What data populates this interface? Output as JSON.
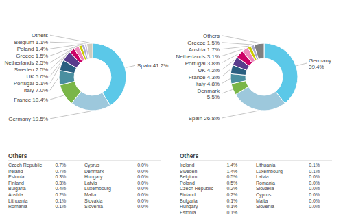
{
  "chart_data": [
    {
      "type": "donut",
      "categories": [
        "Spain 41.2%",
        "Germany 19.5%",
        "France 10.4%",
        "Italy 7.0%",
        "Portugal 5.1%",
        "UK 5.0%",
        "Sweden 2.5%",
        "Netherlands 2.5%",
        "Greece 1.5%",
        "Poland 1.4%",
        "Belgium 1.1%",
        "Others"
      ],
      "values": [
        41.2,
        19.5,
        10.4,
        7.0,
        5.1,
        5.0,
        2.5,
        2.5,
        1.5,
        1.4,
        1.1,
        2.8
      ],
      "colors": [
        "#5bc8e8",
        "#9dc8dc",
        "#7ab648",
        "#4a8fa0",
        "#2a5f80",
        "#5a3c8c",
        "#cc0066",
        "#ee88bb",
        "#cccc00",
        "#aaaacc",
        "#ccbbdd",
        "#d0ccc0"
      ],
      "others": {
        "title": "Others",
        "categories": [
          "Czech Republic",
          "Ireland",
          "Estonia",
          "Finland",
          "Bulgaria",
          "Austria",
          "Lithuania",
          "Romania",
          "Cyprus",
          "Denmark",
          "Hungary",
          "Latvia",
          "Luxembourg",
          "Malta",
          "Slovakia",
          "Slovenia"
        ],
        "values": [
          0.7,
          0.7,
          0.3,
          0.3,
          0.4,
          0.2,
          0.1,
          0.1,
          0.0,
          0.0,
          0.0,
          0.0,
          0.0,
          0.0,
          0.0,
          0.0
        ],
        "value_labels": [
          "0.7%",
          "0.7%",
          "0.3%",
          "0.3%",
          "0.4%",
          "0.2%",
          "0.1%",
          "0.1%",
          "0.0%",
          "0.0%",
          "0.0%",
          "0.0%",
          "0.0%",
          "0.0%",
          "0.0%",
          "0.0%"
        ]
      }
    },
    {
      "type": "donut",
      "categories": [
        "Germany\n39.4%",
        "Spain 26.8%",
        "Denmark\n5.5%",
        "Italy 4.8%",
        "France 4.3%",
        "UK 4.2%",
        "Portugal 3.8%",
        "Netherlands 3.1%",
        "Austria 1.7%",
        "Greece 1.5%",
        "Others"
      ],
      "values": [
        39.4,
        26.8,
        5.5,
        4.8,
        4.3,
        4.2,
        3.8,
        3.1,
        1.7,
        1.5,
        4.9
      ],
      "colors": [
        "#5bc8e8",
        "#9dc8dc",
        "#7ab648",
        "#4a8fa0",
        "#2a5f80",
        "#5a3c8c",
        "#cc0066",
        "#ee88bb",
        "#cccc00",
        "#aaaacc",
        "#808080"
      ],
      "others": {
        "title": "Others",
        "categories": [
          "Ireland",
          "Sweden",
          "Belgium",
          "Poland",
          "Czech Republic",
          "Finland",
          "Bulgaria",
          "Hungary",
          "Estonia",
          "Lithuania",
          "Luxembourg",
          "Latvia",
          "Romania",
          "Slovakia",
          "Cyprus",
          "Malta",
          "Slovenia"
        ],
        "values": [
          1.4,
          1.4,
          0.5,
          0.5,
          0.2,
          0.2,
          0.1,
          0.1,
          0.1,
          0.1,
          0.1,
          0.0,
          0.0,
          0.0,
          0.0,
          0.0,
          0.0
        ],
        "value_labels": [
          "1.4%",
          "1.4%",
          "0.5%",
          "0.5%",
          "0.2%",
          "0.2%",
          "0.1%",
          "0.1%",
          "0.1%",
          "0.1%",
          "0.1%",
          "0.0%",
          "0.0%",
          "0.0%",
          "0.0%",
          "0.0%",
          "0.0%"
        ]
      }
    }
  ]
}
